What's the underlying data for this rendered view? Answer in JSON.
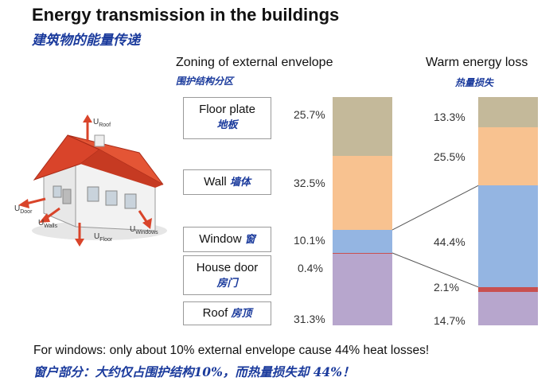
{
  "title": "Energy transmission in the buildings",
  "title_cn": "建筑物的能量传递",
  "left_header": "Zoning of external envelope",
  "left_header_cn": "围护结构分区",
  "right_header": "Warm energy loss",
  "right_header_cn": "热量损失",
  "house_labels": {
    "roof": "U",
    "roof_sub": "Roof",
    "door": "U",
    "door_sub": "Door",
    "walls": "U",
    "walls_sub": "Walls",
    "floor": "U",
    "floor_sub": "Floor",
    "windows": "U",
    "windows_sub": "Windows"
  },
  "zones": [
    {
      "name": "Floor plate",
      "name_cn": "地板",
      "envelope_pct": "25.7%",
      "loss_pct": "13.3%",
      "color": "#c4b99a"
    },
    {
      "name": "Wall",
      "name_cn": "墙体",
      "envelope_pct": "32.5%",
      "loss_pct": "25.5%",
      "color": "#f8c290"
    },
    {
      "name": "Window",
      "name_cn": "窗",
      "envelope_pct": "10.1%",
      "loss_pct": "44.4%",
      "color": "#94b5e2"
    },
    {
      "name": "House door",
      "name_cn": "房门",
      "envelope_pct": "0.4%",
      "loss_pct": "2.1%",
      "color": "#c85050"
    },
    {
      "name": "Roof",
      "name_cn": "房顶",
      "envelope_pct": "31.3%",
      "loss_pct": "14.7%",
      "color": "#b7a6cd"
    }
  ],
  "footer": "For windows: only about 10% external envelope cause 44% heat losses!",
  "footer_cn": "窗户部分：大约仅占围护结构10%，而热量损失却 44%！"
}
